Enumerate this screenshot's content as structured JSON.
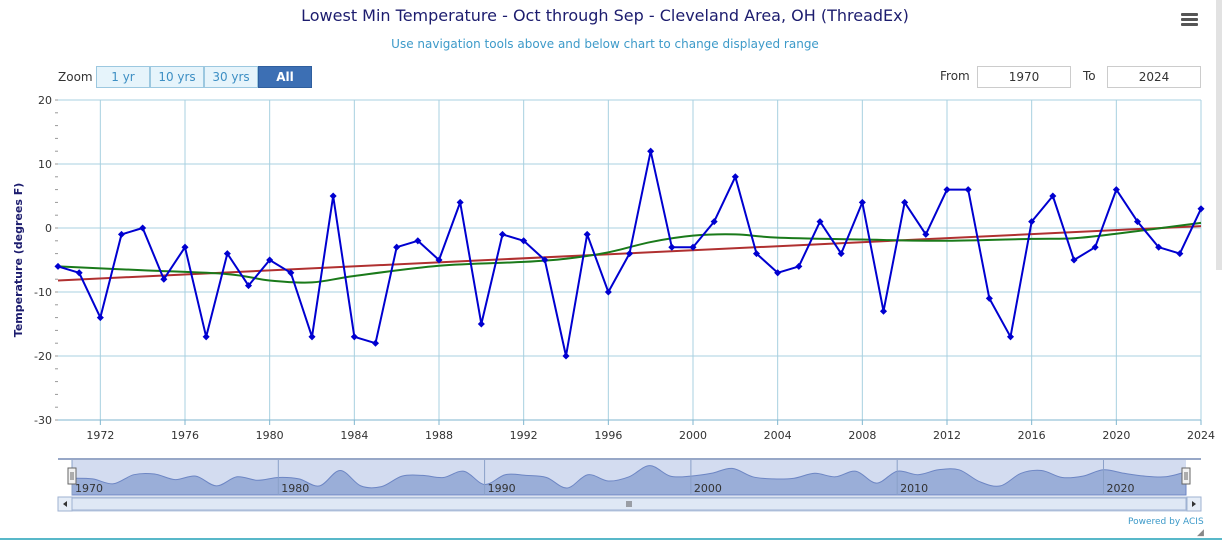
{
  "header": {
    "title": "Lowest Min Temperature - Oct through Sep - Cleveland Area, OH (ThreadEx)",
    "subtitle": "Use navigation tools above and below chart to change displayed range"
  },
  "menu": {
    "icon": "hamburger-menu-icon"
  },
  "zoom": {
    "label": "Zoom",
    "buttons": [
      {
        "label": "1 yr",
        "active": false
      },
      {
        "label": "10 yrs",
        "active": false
      },
      {
        "label": "30 yrs",
        "active": false
      },
      {
        "label": "All",
        "active": true
      }
    ]
  },
  "range": {
    "from_label": "From",
    "from_value": "1970",
    "to_label": "To",
    "to_value": "2024"
  },
  "footer": {
    "powered_by": "Powered by ACIS"
  },
  "colors": {
    "observed": "#0000d0",
    "trend": "#b03030",
    "smoothed": "#1a7a1a",
    "grid": "#a8d0e0",
    "navigator_fill": "#9aaed8",
    "navigator_window": "#d3dcf0"
  },
  "chart_data": {
    "type": "line",
    "ylabel": "Temperature (degrees F)",
    "xlim": [
      1970,
      2024
    ],
    "ylim": [
      -30,
      20
    ],
    "y_ticks": [
      20,
      10,
      0,
      -10,
      -20,
      -30
    ],
    "x_ticks": [
      1972,
      1976,
      1980,
      1984,
      1988,
      1992,
      1996,
      2000,
      2004,
      2008,
      2012,
      2016,
      2020,
      2024
    ],
    "navigator_ticks": [
      1970,
      1980,
      1990,
      2000,
      2010,
      2020
    ],
    "x": [
      1970,
      1971,
      1972,
      1973,
      1974,
      1975,
      1976,
      1977,
      1978,
      1979,
      1980,
      1981,
      1982,
      1983,
      1984,
      1985,
      1986,
      1987,
      1988,
      1989,
      1990,
      1991,
      1992,
      1993,
      1994,
      1995,
      1996,
      1997,
      1998,
      1999,
      2000,
      2001,
      2002,
      2003,
      2004,
      2005,
      2006,
      2007,
      2008,
      2009,
      2010,
      2011,
      2012,
      2013,
      2014,
      2015,
      2016,
      2017,
      2018,
      2019,
      2020,
      2021,
      2022,
      2023,
      2024
    ],
    "series": [
      {
        "values": [
          -6,
          -7,
          -14,
          -1,
          0,
          -8,
          -3,
          -17,
          -4,
          -9,
          -5,
          -7,
          -17,
          5,
          -17,
          -18,
          -3,
          -2,
          -5,
          4,
          -15,
          -1,
          -2,
          -5,
          -20,
          -1,
          -10,
          -4,
          12,
          -3,
          -3,
          1,
          8,
          -4,
          -7,
          -6,
          1,
          -4,
          4,
          -13,
          4,
          -1,
          6,
          6,
          -11,
          -17,
          1,
          5,
          -5,
          -3,
          6,
          1,
          -3,
          -4,
          3
        ]
      },
      {
        "x": [
          1970,
          2024
        ],
        "values": [
          -8.2,
          0.3
        ]
      },
      {
        "x": [
          1970,
          1974,
          1978,
          1980,
          1982,
          1984,
          1988,
          1992,
          1994,
          1996,
          1998,
          2000,
          2002,
          2004,
          2008,
          2012,
          2016,
          2018,
          2020,
          2024
        ],
        "values": [
          -6.0,
          -6.6,
          -7.2,
          -8.2,
          -8.5,
          -7.5,
          -5.9,
          -5.3,
          -4.8,
          -3.8,
          -2.2,
          -1.2,
          -1.0,
          -1.5,
          -1.8,
          -2.0,
          -1.7,
          -1.6,
          -0.9,
          0.8
        ]
      }
    ]
  }
}
